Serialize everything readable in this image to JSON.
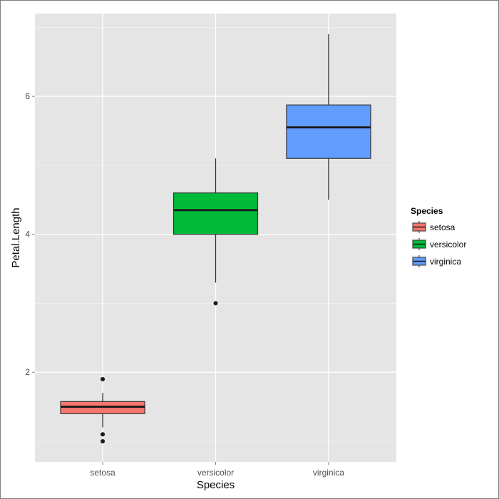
{
  "chart_data": {
    "type": "boxplot",
    "xlabel": "Species",
    "ylabel": "Petal.Length",
    "categories": [
      "setosa",
      "versicolor",
      "virginica"
    ],
    "ylim": [
      0.7,
      7.2
    ],
    "yticks": [
      2,
      4,
      6
    ],
    "y_tick_labels": [
      "2",
      "4",
      "6"
    ],
    "grid": true,
    "boxes": [
      {
        "category": "setosa",
        "whisker_low": 1.2,
        "q1": 1.4,
        "median": 1.5,
        "q3": 1.575,
        "whisker_high": 1.7,
        "outliers": [
          1.0,
          1.1,
          1.9
        ],
        "color": "#F8766D"
      },
      {
        "category": "versicolor",
        "whisker_low": 3.3,
        "q1": 4.0,
        "median": 4.35,
        "q3": 4.6,
        "whisker_high": 5.1,
        "outliers": [
          3.0
        ],
        "color": "#00BA38"
      },
      {
        "category": "virginica",
        "whisker_low": 4.5,
        "q1": 5.1,
        "median": 5.55,
        "q3": 5.875,
        "whisker_high": 6.9,
        "outliers": [],
        "color": "#619CFF"
      }
    ],
    "legend": {
      "title": "Species",
      "position": "right",
      "items": [
        {
          "label": "setosa",
          "color": "#F8766D"
        },
        {
          "label": "versicolor",
          "color": "#00BA38"
        },
        {
          "label": "virginica",
          "color": "#619CFF"
        }
      ]
    },
    "panel_background": "#E5E5E5",
    "grid_color": "#FFFFFF"
  }
}
